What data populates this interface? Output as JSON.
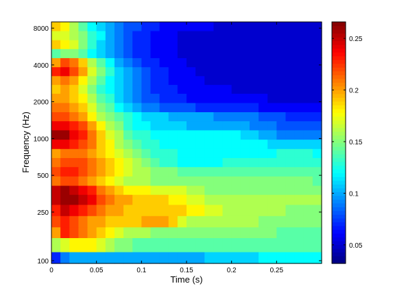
{
  "chart_data": {
    "type": "heatmap",
    "title": "",
    "xlabel": "Time (s)",
    "ylabel": "Frequency (Hz)",
    "xlim": [
      0,
      0.3
    ],
    "ylim": [
      95,
      9000
    ],
    "yscale": "log",
    "colormap": "jet",
    "clim": [
      0.032,
      0.266
    ],
    "grid": false,
    "x_ticks": [
      {
        "value": 0,
        "label": "0"
      },
      {
        "value": 0.05,
        "label": "0.05"
      },
      {
        "value": 0.1,
        "label": "0.1"
      },
      {
        "value": 0.15,
        "label": "0.15"
      },
      {
        "value": 0.2,
        "label": "0.2"
      },
      {
        "value": 0.25,
        "label": "0.25"
      }
    ],
    "y_ticks": [
      {
        "value": 100,
        "label": "100"
      },
      {
        "value": 250,
        "label": "250"
      },
      {
        "value": 500,
        "label": "500"
      },
      {
        "value": 1000,
        "label": "1000"
      },
      {
        "value": 2000,
        "label": "2000"
      },
      {
        "value": 4000,
        "label": "4000"
      },
      {
        "value": 8000,
        "label": "8000"
      }
    ],
    "colorbar_ticks": [
      {
        "value": 0.05,
        "label": "0.05"
      },
      {
        "value": 0.1,
        "label": "0.1"
      },
      {
        "value": 0.15,
        "label": "0.15"
      },
      {
        "value": 0.2,
        "label": "0.2"
      },
      {
        "value": 0.25,
        "label": "0.25"
      }
    ],
    "time_bins": [
      0,
      0.01,
      0.02,
      0.03,
      0.04,
      0.05,
      0.06,
      0.07,
      0.08,
      0.09,
      0.1,
      0.11,
      0.12,
      0.13,
      0.14,
      0.15,
      0.16,
      0.17,
      0.18,
      0.19,
      0.2,
      0.21,
      0.22,
      0.23,
      0.24,
      0.25,
      0.26,
      0.27,
      0.28,
      0.29,
      0.3
    ],
    "freq_bands": [
      {
        "f": 100,
        "values": [
          0.07,
          0.09,
          0.1,
          0.1,
          0.1,
          0.1,
          0.1,
          0.1,
          0.1,
          0.1,
          0.1,
          0.1,
          0.1,
          0.1,
          0.1,
          0.1,
          0.1,
          0.11,
          0.11,
          0.11,
          0.11,
          0.11,
          0.11,
          0.12,
          0.12,
          0.12,
          0.12,
          0.12,
          0.12,
          0.12
        ]
      },
      {
        "f": 140,
        "values": [
          0.16,
          0.17,
          0.18,
          0.18,
          0.18,
          0.17,
          0.16,
          0.15,
          0.15,
          0.14,
          0.14,
          0.14,
          0.14,
          0.14,
          0.14,
          0.14,
          0.14,
          0.14,
          0.14,
          0.14,
          0.14,
          0.14,
          0.14,
          0.14,
          0.14,
          0.14,
          0.14,
          0.14,
          0.14,
          0.14
        ]
      },
      {
        "f": 170,
        "values": [
          0.2,
          0.23,
          0.22,
          0.21,
          0.2,
          0.19,
          0.18,
          0.17,
          0.16,
          0.16,
          0.16,
          0.15,
          0.15,
          0.15,
          0.15,
          0.15,
          0.15,
          0.15,
          0.15,
          0.15,
          0.15,
          0.15,
          0.15,
          0.15,
          0.15,
          0.14,
          0.14,
          0.14,
          0.14,
          0.14
        ]
      },
      {
        "f": 210,
        "values": [
          0.22,
          0.23,
          0.22,
          0.21,
          0.2,
          0.2,
          0.19,
          0.19,
          0.19,
          0.19,
          0.2,
          0.2,
          0.2,
          0.19,
          0.17,
          0.16,
          0.16,
          0.16,
          0.16,
          0.16,
          0.16,
          0.16,
          0.16,
          0.15,
          0.15,
          0.15,
          0.15,
          0.15,
          0.15,
          0.15
        ]
      },
      {
        "f": 260,
        "values": [
          0.23,
          0.25,
          0.24,
          0.23,
          0.22,
          0.21,
          0.2,
          0.2,
          0.19,
          0.19,
          0.19,
          0.19,
          0.19,
          0.19,
          0.19,
          0.18,
          0.18,
          0.17,
          0.17,
          0.16,
          0.16,
          0.16,
          0.16,
          0.16,
          0.16,
          0.16,
          0.15,
          0.15,
          0.15,
          0.15
        ]
      },
      {
        "f": 320,
        "values": [
          0.25,
          0.26,
          0.26,
          0.25,
          0.24,
          0.22,
          0.21,
          0.2,
          0.2,
          0.19,
          0.19,
          0.19,
          0.19,
          0.18,
          0.18,
          0.17,
          0.17,
          0.16,
          0.16,
          0.16,
          0.16,
          0.16,
          0.16,
          0.16,
          0.16,
          0.16,
          0.16,
          0.16,
          0.16,
          0.16
        ]
      },
      {
        "f": 380,
        "values": [
          0.25,
          0.26,
          0.25,
          0.24,
          0.23,
          0.21,
          0.2,
          0.19,
          0.18,
          0.18,
          0.18,
          0.17,
          0.17,
          0.17,
          0.17,
          0.16,
          0.16,
          0.15,
          0.15,
          0.15,
          0.15,
          0.15,
          0.15,
          0.15,
          0.15,
          0.15,
          0.15,
          0.15,
          0.15,
          0.15
        ]
      },
      {
        "f": 450,
        "values": [
          0.21,
          0.22,
          0.22,
          0.21,
          0.2,
          0.19,
          0.18,
          0.17,
          0.16,
          0.16,
          0.16,
          0.15,
          0.15,
          0.15,
          0.15,
          0.15,
          0.15,
          0.15,
          0.15,
          0.15,
          0.15,
          0.15,
          0.15,
          0.15,
          0.15,
          0.15,
          0.15,
          0.15,
          0.15,
          0.14
        ]
      },
      {
        "f": 540,
        "values": [
          0.22,
          0.23,
          0.23,
          0.22,
          0.21,
          0.2,
          0.19,
          0.18,
          0.17,
          0.16,
          0.16,
          0.15,
          0.15,
          0.15,
          0.14,
          0.14,
          0.14,
          0.14,
          0.14,
          0.14,
          0.14,
          0.14,
          0.14,
          0.14,
          0.14,
          0.14,
          0.14,
          0.14,
          0.14,
          0.14
        ]
      },
      {
        "f": 640,
        "values": [
          0.21,
          0.22,
          0.22,
          0.22,
          0.21,
          0.2,
          0.19,
          0.18,
          0.17,
          0.16,
          0.15,
          0.14,
          0.13,
          0.13,
          0.12,
          0.12,
          0.12,
          0.12,
          0.12,
          0.13,
          0.13,
          0.13,
          0.13,
          0.13,
          0.13,
          0.13,
          0.13,
          0.13,
          0.13,
          0.13
        ]
      },
      {
        "f": 760,
        "values": [
          0.2,
          0.21,
          0.21,
          0.21,
          0.2,
          0.19,
          0.18,
          0.17,
          0.16,
          0.15,
          0.14,
          0.13,
          0.13,
          0.13,
          0.12,
          0.12,
          0.12,
          0.12,
          0.12,
          0.12,
          0.12,
          0.12,
          0.12,
          0.12,
          0.12,
          0.13,
          0.13,
          0.13,
          0.13,
          0.12
        ]
      },
      {
        "f": 900,
        "values": [
          0.24,
          0.24,
          0.23,
          0.22,
          0.21,
          0.19,
          0.18,
          0.16,
          0.15,
          0.14,
          0.13,
          0.13,
          0.12,
          0.12,
          0.12,
          0.12,
          0.12,
          0.12,
          0.12,
          0.12,
          0.12,
          0.12,
          0.12,
          0.12,
          0.11,
          0.11,
          0.11,
          0.11,
          0.11,
          0.11
        ]
      },
      {
        "f": 1080,
        "values": [
          0.26,
          0.26,
          0.24,
          0.23,
          0.21,
          0.19,
          0.17,
          0.16,
          0.14,
          0.13,
          0.13,
          0.12,
          0.12,
          0.12,
          0.12,
          0.12,
          0.12,
          0.12,
          0.12,
          0.12,
          0.12,
          0.11,
          0.11,
          0.1,
          0.1,
          0.09,
          0.09,
          0.09,
          0.09,
          0.09
        ]
      },
      {
        "f": 1280,
        "values": [
          0.24,
          0.24,
          0.23,
          0.22,
          0.2,
          0.18,
          0.16,
          0.15,
          0.13,
          0.12,
          0.12,
          0.11,
          0.11,
          0.11,
          0.11,
          0.1,
          0.1,
          0.1,
          0.1,
          0.1,
          0.1,
          0.1,
          0.09,
          0.09,
          0.09,
          0.08,
          0.08,
          0.08,
          0.08,
          0.08
        ]
      },
      {
        "f": 1520,
        "values": [
          0.22,
          0.22,
          0.21,
          0.2,
          0.18,
          0.16,
          0.15,
          0.14,
          0.13,
          0.12,
          0.11,
          0.11,
          0.11,
          0.1,
          0.1,
          0.1,
          0.1,
          0.1,
          0.09,
          0.09,
          0.09,
          0.09,
          0.09,
          0.08,
          0.08,
          0.08,
          0.07,
          0.07,
          0.07,
          0.07
        ]
      },
      {
        "f": 1800,
        "values": [
          0.21,
          0.21,
          0.2,
          0.19,
          0.17,
          0.15,
          0.14,
          0.12,
          0.11,
          0.1,
          0.09,
          0.09,
          0.08,
          0.08,
          0.08,
          0.08,
          0.07,
          0.07,
          0.07,
          0.07,
          0.07,
          0.07,
          0.07,
          0.06,
          0.06,
          0.06,
          0.06,
          0.06,
          0.06,
          0.06
        ]
      },
      {
        "f": 2150,
        "values": [
          0.2,
          0.2,
          0.19,
          0.18,
          0.16,
          0.14,
          0.13,
          0.11,
          0.1,
          0.09,
          0.08,
          0.08,
          0.07,
          0.07,
          0.07,
          0.06,
          0.06,
          0.06,
          0.06,
          0.06,
          0.06,
          0.06,
          0.06,
          0.06,
          0.05,
          0.05,
          0.05,
          0.05,
          0.05,
          0.05
        ]
      },
      {
        "f": 2550,
        "values": [
          0.19,
          0.2,
          0.19,
          0.17,
          0.15,
          0.13,
          0.12,
          0.11,
          0.1,
          0.09,
          0.08,
          0.07,
          0.07,
          0.07,
          0.06,
          0.06,
          0.06,
          0.06,
          0.06,
          0.06,
          0.05,
          0.05,
          0.05,
          0.05,
          0.05,
          0.05,
          0.05,
          0.05,
          0.05,
          0.05
        ]
      },
      {
        "f": 3000,
        "values": [
          0.2,
          0.21,
          0.2,
          0.18,
          0.16,
          0.14,
          0.12,
          0.11,
          0.1,
          0.09,
          0.08,
          0.07,
          0.07,
          0.06,
          0.06,
          0.06,
          0.06,
          0.05,
          0.05,
          0.05,
          0.05,
          0.05,
          0.05,
          0.05,
          0.05,
          0.05,
          0.05,
          0.05,
          0.05,
          0.05
        ]
      },
      {
        "f": 3550,
        "values": [
          0.23,
          0.24,
          0.22,
          0.2,
          0.17,
          0.15,
          0.13,
          0.11,
          0.1,
          0.09,
          0.08,
          0.07,
          0.07,
          0.06,
          0.06,
          0.06,
          0.05,
          0.05,
          0.05,
          0.05,
          0.05,
          0.05,
          0.05,
          0.05,
          0.05,
          0.05,
          0.05,
          0.05,
          0.05,
          0.05
        ]
      },
      {
        "f": 4200,
        "values": [
          0.2,
          0.22,
          0.21,
          0.19,
          0.16,
          0.14,
          0.12,
          0.1,
          0.09,
          0.08,
          0.07,
          0.07,
          0.06,
          0.06,
          0.06,
          0.05,
          0.05,
          0.05,
          0.05,
          0.05,
          0.05,
          0.05,
          0.05,
          0.05,
          0.05,
          0.05,
          0.05,
          0.05,
          0.05,
          0.05
        ]
      },
      {
        "f": 5000,
        "values": [
          0.14,
          0.15,
          0.15,
          0.14,
          0.12,
          0.11,
          0.1,
          0.09,
          0.08,
          0.07,
          0.07,
          0.06,
          0.06,
          0.06,
          0.05,
          0.05,
          0.05,
          0.05,
          0.05,
          0.05,
          0.05,
          0.05,
          0.05,
          0.05,
          0.05,
          0.05,
          0.05,
          0.05,
          0.05,
          0.05
        ]
      },
      {
        "f": 5900,
        "values": [
          0.19,
          0.18,
          0.17,
          0.15,
          0.13,
          0.11,
          0.1,
          0.09,
          0.08,
          0.07,
          0.07,
          0.06,
          0.06,
          0.06,
          0.05,
          0.05,
          0.05,
          0.05,
          0.05,
          0.05,
          0.05,
          0.05,
          0.05,
          0.05,
          0.05,
          0.05,
          0.05,
          0.05,
          0.05,
          0.05
        ]
      },
      {
        "f": 7000,
        "values": [
          0.17,
          0.17,
          0.16,
          0.15,
          0.13,
          0.12,
          0.1,
          0.09,
          0.08,
          0.07,
          0.07,
          0.06,
          0.06,
          0.06,
          0.05,
          0.05,
          0.05,
          0.05,
          0.05,
          0.05,
          0.05,
          0.05,
          0.05,
          0.05,
          0.05,
          0.05,
          0.05,
          0.05,
          0.05,
          0.05
        ]
      },
      {
        "f": 8300,
        "values": [
          0.19,
          0.18,
          0.16,
          0.14,
          0.12,
          0.11,
          0.1,
          0.09,
          0.08,
          0.08,
          0.07,
          0.07,
          0.06,
          0.06,
          0.06,
          0.06,
          0.06,
          0.06,
          0.05,
          0.05,
          0.05,
          0.05,
          0.05,
          0.05,
          0.05,
          0.05,
          0.05,
          0.05,
          0.05,
          0.05
        ]
      }
    ]
  }
}
